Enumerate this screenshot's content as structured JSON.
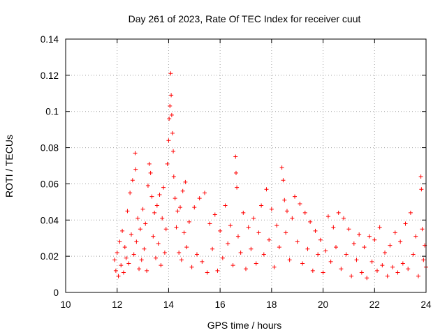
{
  "chart_data": {
    "type": "scatter",
    "title": "Day 261 of 2023, Rate Of TEC Index for receiver cuut",
    "xlabel": "GPS time / hours",
    "ylabel": "ROTI / TECUs",
    "xlim": [
      10,
      24
    ],
    "ylim": [
      0,
      0.14
    ],
    "x_ticks": [
      10,
      12,
      14,
      16,
      18,
      20,
      22,
      24
    ],
    "y_ticks": [
      0,
      0.02,
      0.04,
      0.06,
      0.08,
      0.1,
      0.12,
      0.14
    ],
    "x_tick_labels": [
      "10",
      "12",
      "14",
      "16",
      "18",
      "20",
      "22",
      "24"
    ],
    "y_tick_labels": [
      "0",
      "0.02",
      "0.04",
      "0.06",
      "0.08",
      "0.1",
      "0.12",
      "0.14"
    ],
    "grid": true,
    "marker": "+",
    "color": "#ff0000",
    "series": [
      {
        "points": [
          [
            11.9,
            0.018
          ],
          [
            11.95,
            0.012
          ],
          [
            12.0,
            0.022
          ],
          [
            12.05,
            0.009
          ],
          [
            12.1,
            0.028
          ],
          [
            12.15,
            0.015
          ],
          [
            12.2,
            0.034
          ],
          [
            12.25,
            0.011
          ],
          [
            12.3,
            0.025
          ],
          [
            12.35,
            0.019
          ],
          [
            12.4,
            0.045
          ],
          [
            12.45,
            0.016
          ],
          [
            12.5,
            0.055
          ],
          [
            12.55,
            0.032
          ],
          [
            12.6,
            0.062
          ],
          [
            12.65,
            0.021
          ],
          [
            12.7,
            0.077
          ],
          [
            12.72,
            0.068
          ],
          [
            12.75,
            0.028
          ],
          [
            12.8,
            0.041
          ],
          [
            12.85,
            0.013
          ],
          [
            12.9,
            0.035
          ],
          [
            12.95,
            0.018
          ],
          [
            13.0,
            0.046
          ],
          [
            13.05,
            0.024
          ],
          [
            13.1,
            0.038
          ],
          [
            13.15,
            0.012
          ],
          [
            13.2,
            0.059
          ],
          [
            13.25,
            0.071
          ],
          [
            13.3,
            0.066
          ],
          [
            13.35,
            0.053
          ],
          [
            13.4,
            0.031
          ],
          [
            13.45,
            0.044
          ],
          [
            13.5,
            0.019
          ],
          [
            13.55,
            0.048
          ],
          [
            13.6,
            0.027
          ],
          [
            13.65,
            0.054
          ],
          [
            13.7,
            0.015
          ],
          [
            13.75,
            0.041
          ],
          [
            13.8,
            0.058
          ],
          [
            13.85,
            0.022
          ],
          [
            13.9,
            0.035
          ],
          [
            13.95,
            0.071
          ],
          [
            14.0,
            0.084
          ],
          [
            14.02,
            0.096
          ],
          [
            14.05,
            0.103
          ],
          [
            14.08,
            0.121
          ],
          [
            14.1,
            0.109
          ],
          [
            14.12,
            0.098
          ],
          [
            14.15,
            0.088
          ],
          [
            14.18,
            0.078
          ],
          [
            14.2,
            0.064
          ],
          [
            14.25,
            0.052
          ],
          [
            14.3,
            0.036
          ],
          [
            14.35,
            0.045
          ],
          [
            14.4,
            0.022
          ],
          [
            14.45,
            0.047
          ],
          [
            14.5,
            0.018
          ],
          [
            14.55,
            0.056
          ],
          [
            14.6,
            0.033
          ],
          [
            14.65,
            0.061
          ],
          [
            14.7,
            0.025
          ],
          [
            14.8,
            0.039
          ],
          [
            14.9,
            0.014
          ],
          [
            15.0,
            0.047
          ],
          [
            15.1,
            0.021
          ],
          [
            15.2,
            0.052
          ],
          [
            15.3,
            0.017
          ],
          [
            15.4,
            0.055
          ],
          [
            15.5,
            0.011
          ],
          [
            15.6,
            0.038
          ],
          [
            15.7,
            0.024
          ],
          [
            15.8,
            0.043
          ],
          [
            15.9,
            0.012
          ],
          [
            16.0,
            0.034
          ],
          [
            16.1,
            0.019
          ],
          [
            16.2,
            0.048
          ],
          [
            16.3,
            0.027
          ],
          [
            16.4,
            0.037
          ],
          [
            16.5,
            0.015
          ],
          [
            16.6,
            0.075
          ],
          [
            16.62,
            0.066
          ],
          [
            16.65,
            0.058
          ],
          [
            16.7,
            0.031
          ],
          [
            16.8,
            0.022
          ],
          [
            16.9,
            0.044
          ],
          [
            17.0,
            0.013
          ],
          [
            17.1,
            0.036
          ],
          [
            17.2,
            0.024
          ],
          [
            17.3,
            0.041
          ],
          [
            17.4,
            0.016
          ],
          [
            17.5,
            0.033
          ],
          [
            17.6,
            0.048
          ],
          [
            17.7,
            0.021
          ],
          [
            17.8,
            0.057
          ],
          [
            17.9,
            0.029
          ],
          [
            18.0,
            0.046
          ],
          [
            18.1,
            0.014
          ],
          [
            18.2,
            0.037
          ],
          [
            18.3,
            0.025
          ],
          [
            18.4,
            0.069
          ],
          [
            18.45,
            0.062
          ],
          [
            18.5,
            0.051
          ],
          [
            18.55,
            0.033
          ],
          [
            18.6,
            0.045
          ],
          [
            18.7,
            0.018
          ],
          [
            18.8,
            0.041
          ],
          [
            18.9,
            0.053
          ],
          [
            19.0,
            0.028
          ],
          [
            19.1,
            0.049
          ],
          [
            19.2,
            0.016
          ],
          [
            19.3,
            0.044
          ],
          [
            19.4,
            0.024
          ],
          [
            19.5,
            0.039
          ],
          [
            19.6,
            0.012
          ],
          [
            19.7,
            0.034
          ],
          [
            19.8,
            0.021
          ],
          [
            19.9,
            0.029
          ],
          [
            20.0,
            0.011
          ],
          [
            20.1,
            0.023
          ],
          [
            20.2,
            0.042
          ],
          [
            20.3,
            0.017
          ],
          [
            20.4,
            0.036
          ],
          [
            20.5,
            0.025
          ],
          [
            20.6,
            0.044
          ],
          [
            20.7,
            0.013
          ],
          [
            20.8,
            0.041
          ],
          [
            20.9,
            0.021
          ],
          [
            21.0,
            0.035
          ],
          [
            21.1,
            0.009
          ],
          [
            21.2,
            0.027
          ],
          [
            21.3,
            0.018
          ],
          [
            21.4,
            0.032
          ],
          [
            21.5,
            0.011
          ],
          [
            21.6,
            0.025
          ],
          [
            21.7,
            0.008
          ],
          [
            21.8,
            0.031
          ],
          [
            21.9,
            0.017
          ],
          [
            22.0,
            0.029
          ],
          [
            22.1,
            0.012
          ],
          [
            22.2,
            0.036
          ],
          [
            22.3,
            0.015
          ],
          [
            22.4,
            0.022
          ],
          [
            22.5,
            0.009
          ],
          [
            22.6,
            0.026
          ],
          [
            22.7,
            0.014
          ],
          [
            22.8,
            0.033
          ],
          [
            22.9,
            0.011
          ],
          [
            23.0,
            0.028
          ],
          [
            23.1,
            0.016
          ],
          [
            23.2,
            0.038
          ],
          [
            23.3,
            0.013
          ],
          [
            23.4,
            0.044
          ],
          [
            23.5,
            0.021
          ],
          [
            23.6,
            0.031
          ],
          [
            23.7,
            0.009
          ],
          [
            23.8,
            0.064
          ],
          [
            23.82,
            0.057
          ],
          [
            23.85,
            0.035
          ],
          [
            23.9,
            0.018
          ],
          [
            23.95,
            0.026
          ],
          [
            24.0,
            0.014
          ]
        ]
      }
    ]
  }
}
